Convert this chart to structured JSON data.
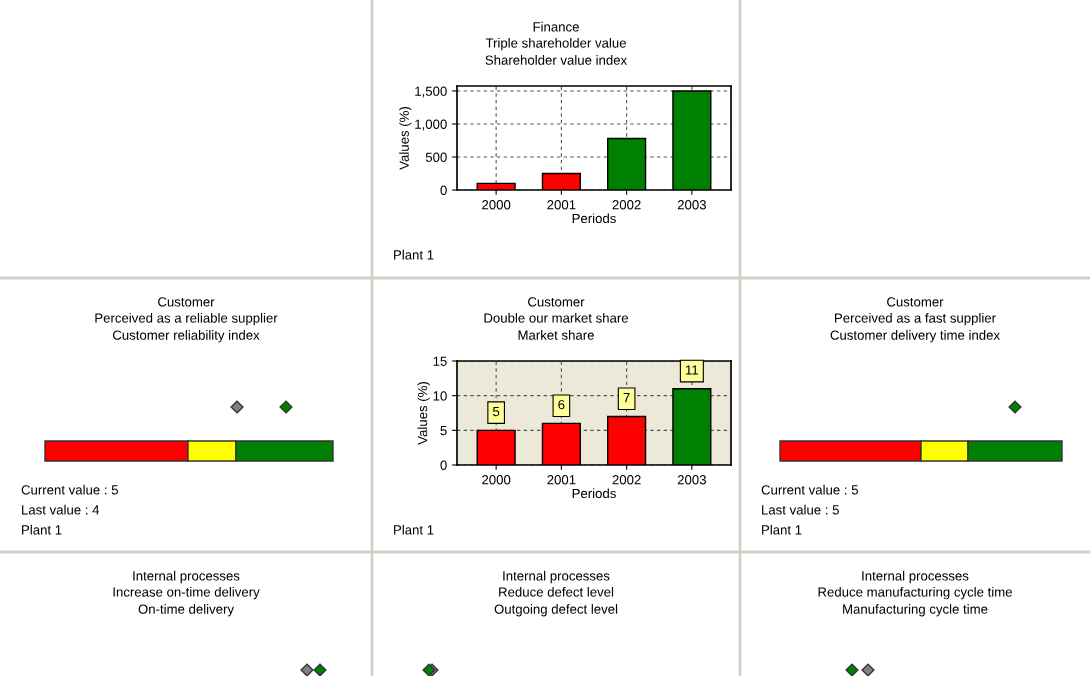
{
  "chart_data": [
    {
      "type": "bar",
      "title": "Finance",
      "subtitle": "Triple shareholder value\nShareholder value index",
      "xlabel": "Periods",
      "ylabel": "Values (%)",
      "categories": [
        "2000",
        "2001",
        "2002",
        "2003"
      ],
      "values": [
        100,
        250,
        780,
        1500
      ],
      "colors": [
        "#ff0000",
        "#ff0000",
        "#008000",
        "#008000"
      ],
      "ylim": [
        0,
        1575
      ],
      "yticks": [
        0,
        500,
        {
          "value": 1000,
          "label": "1,000"
        },
        {
          "value": 1500,
          "label": "1,500"
        }
      ],
      "grid": true,
      "annotations": [
        "Plant 1"
      ]
    },
    {
      "type": "other",
      "title": "Customer",
      "subtitle": "Perceived as a reliable supplier\nCustomer reliability index",
      "annotations": [
        "Current value : 5",
        "Last value : 4",
        "Plant 1"
      ]
    },
    {
      "type": "bar",
      "title": "Customer",
      "subtitle": "Double our market share\nMarket share",
      "xlabel": "Periods",
      "ylabel": "Values (%)",
      "categories": [
        "2000",
        "2001",
        "2002",
        "2003"
      ],
      "values": [
        5,
        6,
        7,
        11
      ],
      "colors": [
        "#ff0000",
        "#ff0000",
        "#ff0000",
        "#008000"
      ],
      "ylim": [
        0,
        15
      ],
      "yticks": [
        0,
        5,
        10,
        15
      ],
      "grid": true,
      "data_labels": true,
      "annotations": [
        "Plant 1"
      ]
    },
    {
      "type": "other",
      "title": "Customer",
      "subtitle": "Perceived as a fast supplier\nCustomer delivery time index",
      "annotations": [
        "Current value : 5",
        "Last value : 5",
        "Plant 1"
      ]
    },
    {
      "type": "other",
      "title": "Internal processes",
      "subtitle": "Increase on-time delivery\nOn-time delivery"
    },
    {
      "type": "other",
      "title": "Internal processes",
      "subtitle": "Reduce defect level\nOutgoing defect level"
    },
    {
      "type": "other",
      "title": "Internal processes",
      "subtitle": "Reduce manufacturing cycle time\nManufacturing cycle time"
    }
  ]
}
